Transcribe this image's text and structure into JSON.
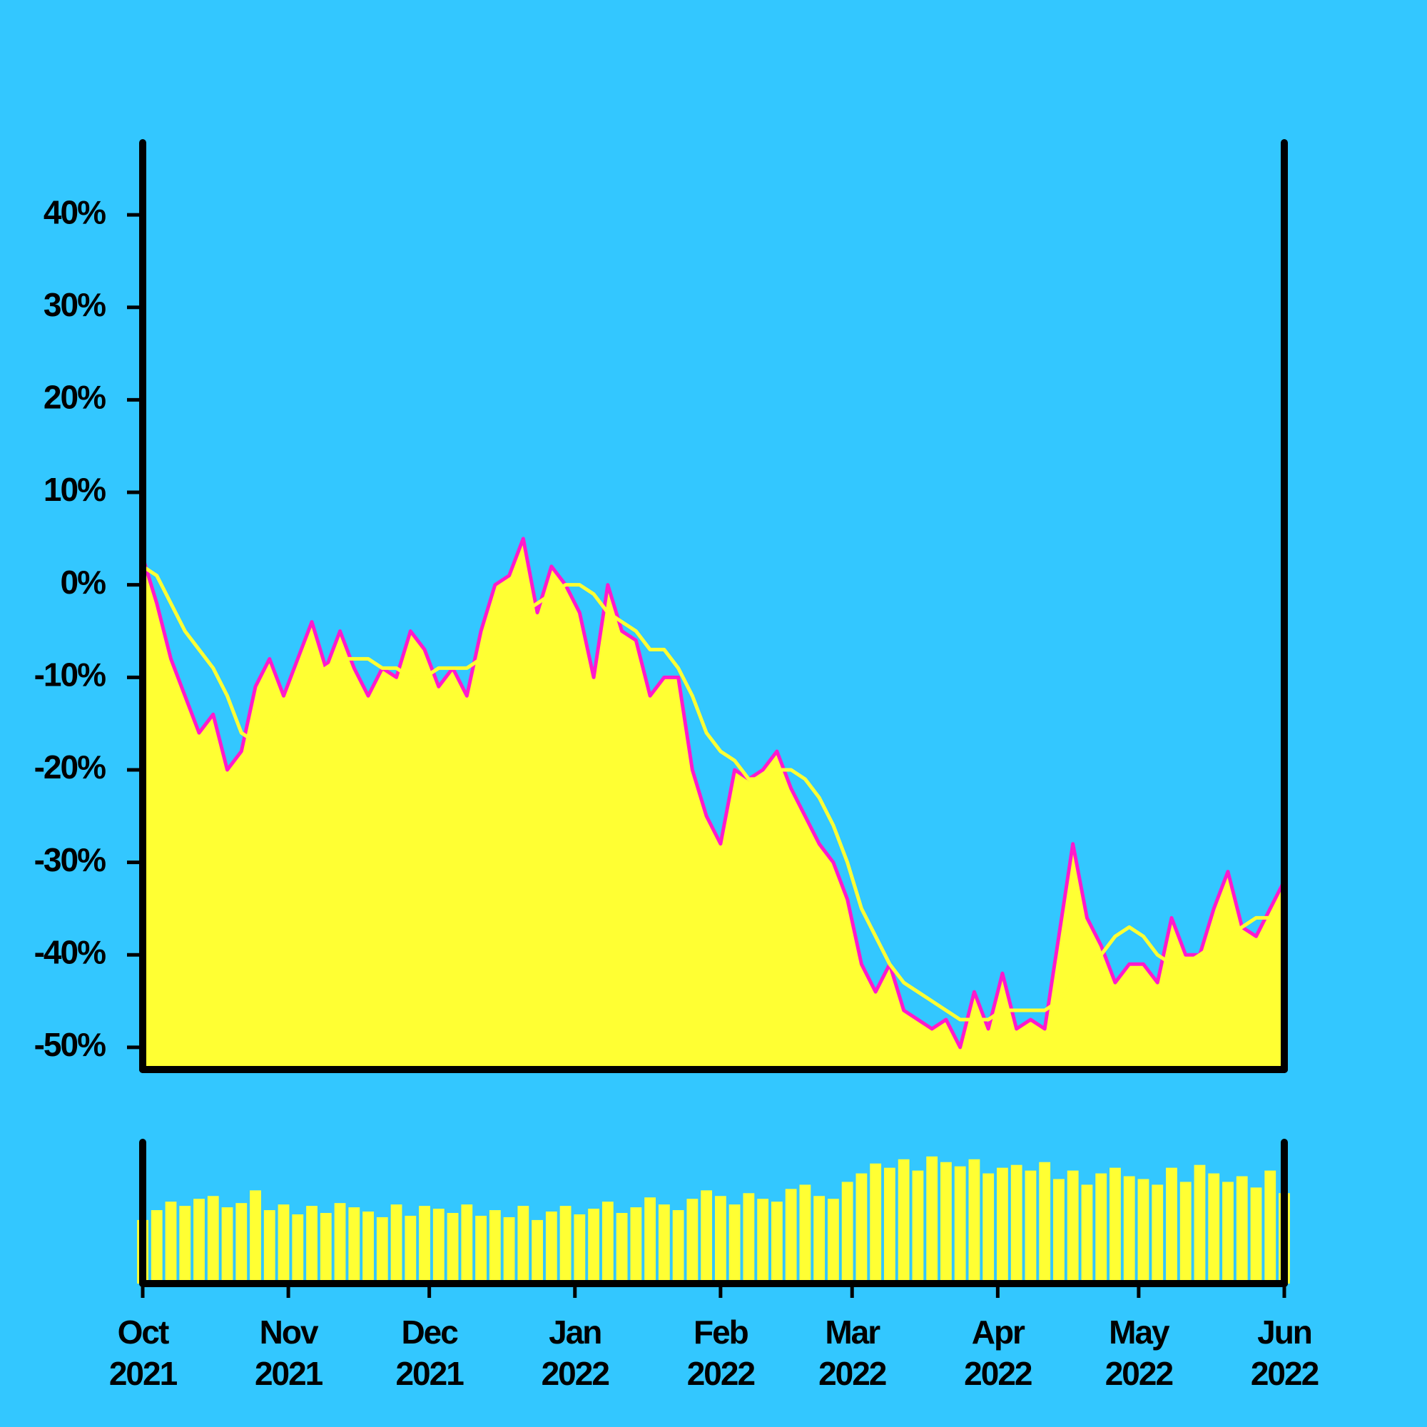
{
  "chart_data": {
    "type": "area",
    "x": [
      0,
      3,
      6,
      9,
      12,
      15,
      18,
      21,
      24,
      27,
      30,
      33,
      36,
      39,
      42,
      45,
      48,
      51,
      54,
      57,
      60,
      63,
      66,
      69,
      72,
      75,
      78,
      81,
      84,
      87,
      90,
      93,
      96,
      99,
      102,
      105,
      108,
      111,
      114,
      117,
      120,
      123,
      126,
      129,
      132,
      135,
      138,
      141,
      144,
      147,
      150,
      153,
      156,
      159,
      162,
      165,
      168,
      171,
      174,
      177,
      180,
      183,
      186,
      189,
      192,
      195,
      198,
      201,
      204,
      207,
      210,
      213,
      216,
      219,
      222,
      225,
      228,
      231,
      234,
      237,
      240,
      243
    ],
    "xlim": [
      0,
      243
    ],
    "xticks": [
      {
        "value": 0,
        "label": "Oct\n2021"
      },
      {
        "value": 31,
        "label": "Nov\n2021"
      },
      {
        "value": 61,
        "label": "Dec\n2021"
      },
      {
        "value": 92,
        "label": "Jan\n2022"
      },
      {
        "value": 123,
        "label": "Feb\n2022"
      },
      {
        "value": 151,
        "label": "Mar\n2022"
      },
      {
        "value": 182,
        "label": "Apr\n2022"
      },
      {
        "value": 212,
        "label": "May\n2022"
      },
      {
        "value": 243,
        "label": "Jun\n2022"
      }
    ],
    "ylim": [
      -52.4,
      47.8
    ],
    "yticks": [
      {
        "value": 40,
        "label": "40%"
      },
      {
        "value": 30,
        "label": "30%"
      },
      {
        "value": 20,
        "label": "20%"
      },
      {
        "value": 10,
        "label": "10%"
      },
      {
        "value": 0,
        "label": "0%"
      },
      {
        "value": -10,
        "label": "-10%"
      },
      {
        "value": -20,
        "label": "-20%"
      },
      {
        "value": -30,
        "label": "-30%"
      },
      {
        "value": -40,
        "label": "-40%"
      },
      {
        "value": -50,
        "label": "-50%"
      }
    ],
    "y2lim": [
      0,
      100
    ],
    "series": [
      {
        "type": "area",
        "color": "#ff1acc",
        "fill": "#ffff33",
        "values": [
          3,
          -2,
          -8,
          -12,
          -16,
          -14,
          -20,
          -18,
          -11,
          -8,
          -12,
          -8,
          -4,
          -9,
          -5,
          -9,
          -12,
          -9,
          -10,
          -5,
          -7,
          -11,
          -9,
          -12,
          -5,
          0,
          1,
          5,
          -3,
          2,
          0,
          -3,
          -10,
          0,
          -5,
          -6,
          -12,
          -10,
          -10,
          -20,
          -25,
          -28,
          -20,
          -21,
          -20,
          -18,
          -22,
          -25,
          -28,
          -30,
          -34,
          -41,
          -44,
          -41,
          -46,
          -47,
          -48,
          -47,
          -50,
          -44,
          -48,
          -42,
          -48,
          -47,
          -48,
          -38,
          -28,
          -36,
          -39,
          -43,
          -41,
          -41,
          -43,
          -36,
          -40,
          -40,
          -35,
          -31,
          -37,
          -38,
          -35,
          -32
        ]
      },
      {
        "type": "line",
        "color": "#ffff33",
        "values": [
          2,
          1,
          -2,
          -5,
          -7,
          -9,
          -12,
          -16,
          -17,
          -15,
          -13,
          -11,
          -10,
          -9,
          -8,
          -8,
          -8,
          -9,
          -9,
          -10,
          -10,
          -9,
          -9,
          -9,
          -8,
          -6,
          -4,
          -3,
          -2,
          -1,
          0,
          0,
          -1,
          -3,
          -4,
          -5,
          -7,
          -7,
          -9,
          -12,
          -16,
          -18,
          -19,
          -21,
          -21,
          -20,
          -20,
          -21,
          -23,
          -26,
          -30,
          -35,
          -38,
          -41,
          -43,
          -44,
          -45,
          -46,
          -47,
          -47,
          -47,
          -46,
          -46,
          -46,
          -46,
          -45,
          -43,
          -41,
          -40,
          -38,
          -37,
          -38,
          -40,
          -41,
          -41,
          -40,
          -39,
          -38,
          -37,
          -36,
          -36,
          -35
        ]
      },
      {
        "type": "bar",
        "axis": "y2",
        "color": "#ffff33",
        "values": [
          45,
          52,
          58,
          55,
          60,
          62,
          54,
          57,
          66,
          52,
          56,
          49,
          55,
          50,
          57,
          54,
          51,
          47,
          56,
          48,
          55,
          53,
          50,
          56,
          48,
          52,
          47,
          55,
          45,
          51,
          55,
          49,
          53,
          58,
          50,
          54,
          61,
          56,
          52,
          60,
          66,
          62,
          56,
          64,
          60,
          58,
          67,
          70,
          62,
          60,
          72,
          78,
          85,
          82,
          88,
          80,
          90,
          86,
          83,
          88,
          78,
          82,
          84,
          80,
          86,
          74,
          80,
          70,
          78,
          82,
          76,
          74,
          70,
          82,
          72,
          84,
          78,
          72,
          76,
          68,
          80,
          64
        ]
      }
    ]
  }
}
